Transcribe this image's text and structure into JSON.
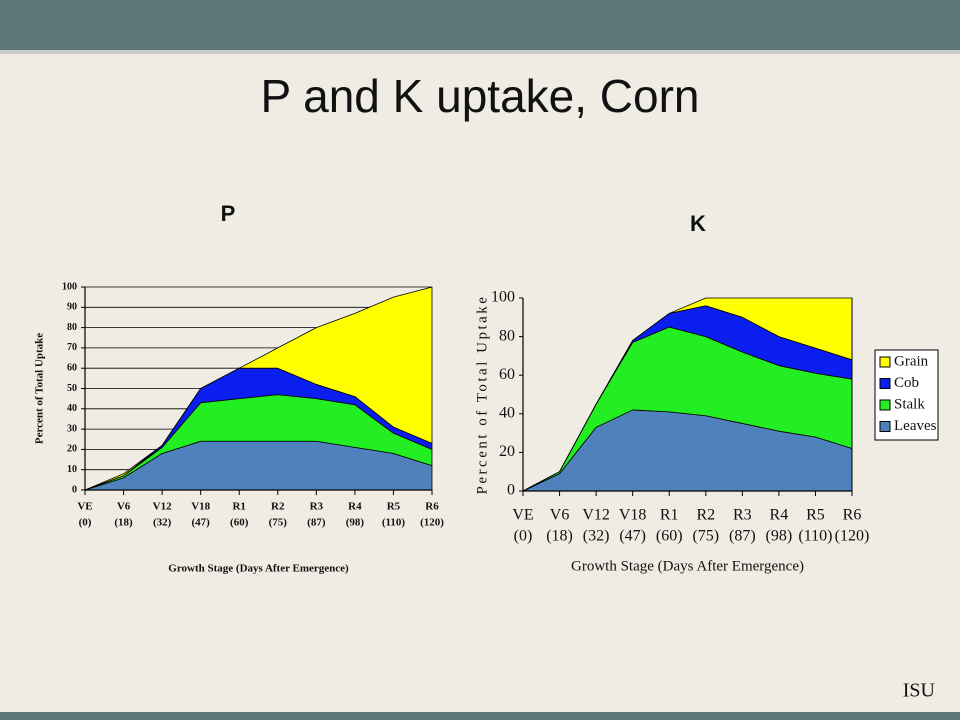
{
  "slide": {
    "title": "P and K uptake, Corn",
    "footer": "ISU"
  },
  "chart_data": [
    {
      "type": "stacked-area",
      "title": "P",
      "y_label": "Percent of Total Uptake",
      "x_label": "Growth Stage (Days After Emergence)",
      "categories": [
        "VE",
        "V6",
        "V12",
        "V18",
        "R1",
        "R2",
        "R3",
        "R4",
        "R5",
        "R6"
      ],
      "category_sublabels": [
        "(0)",
        "(18)",
        "(32)",
        "(47)",
        "(60)",
        "(75)",
        "(87)",
        "(98)",
        "(110)",
        "(120)"
      ],
      "ylim": [
        0,
        100
      ],
      "yticks": [
        0,
        10,
        20,
        30,
        40,
        50,
        60,
        70,
        80,
        90,
        100
      ],
      "grid": true,
      "legend": false,
      "series": [
        {
          "color": "#4f81bd",
          "values": [
            0,
            6,
            18,
            24,
            24,
            24,
            24,
            21,
            18,
            12
          ]
        },
        {
          "color": "#22ee22",
          "values": [
            0,
            1,
            3,
            19,
            21,
            23,
            21,
            21,
            10,
            8
          ]
        },
        {
          "color": "#0a1ef0",
          "values": [
            0,
            0,
            1,
            7,
            15,
            13,
            7,
            4,
            3,
            3
          ]
        },
        {
          "color": "#ffff00",
          "values": [
            0,
            1,
            0,
            0,
            0,
            10,
            28,
            41,
            64,
            77
          ]
        }
      ]
    },
    {
      "type": "stacked-area",
      "title": "K",
      "y_label": "Percent of Total Uptake",
      "x_label": "Growth Stage (Days After Emergence)",
      "categories": [
        "VE",
        "V6",
        "V12",
        "V18",
        "R1",
        "R2",
        "R3",
        "R4",
        "R5",
        "R6"
      ],
      "category_sublabels": [
        "(0)",
        "(18)",
        "(32)",
        "(47)",
        "(60)",
        "(75)",
        "(87)",
        "(98)",
        "(110)",
        "(120)"
      ],
      "ylim": [
        0,
        100
      ],
      "yticks": [
        0,
        20,
        40,
        60,
        80,
        100
      ],
      "grid": false,
      "legend": "right",
      "series": [
        {
          "name": "Leaves",
          "color": "#4f81bd",
          "values": [
            0,
            9,
            33,
            42,
            41,
            39,
            35,
            31,
            28,
            22
          ]
        },
        {
          "name": "Stalk",
          "color": "#22ee22",
          "values": [
            0,
            1,
            12,
            35,
            44,
            41,
            37,
            34,
            33,
            36
          ]
        },
        {
          "name": "Cob",
          "color": "#0a1ef0",
          "values": [
            0,
            0,
            0,
            1,
            7,
            16,
            18,
            15,
            13,
            10
          ]
        },
        {
          "name": "Grain",
          "color": "#ffff00",
          "values": [
            0,
            0,
            0,
            0,
            0,
            4,
            10,
            20,
            26,
            32
          ]
        }
      ]
    }
  ]
}
